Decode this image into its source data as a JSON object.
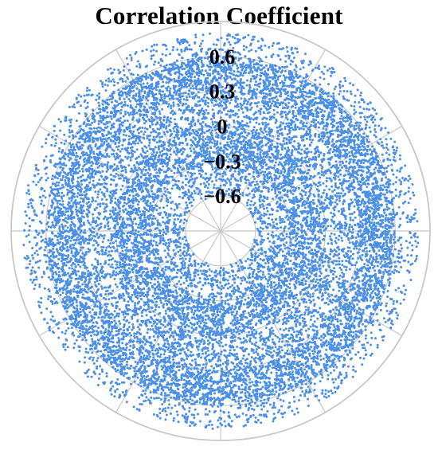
{
  "chart_data": {
    "type": "scatter",
    "projection": "polar",
    "title": "Correlation Coefficient",
    "radial_axis": {
      "range": [
        -0.9,
        0.9
      ],
      "ticks": [
        0.6,
        0.3,
        0,
        -0.3,
        -0.6
      ],
      "tick_labels": [
        "0.6",
        "0.3",
        "0",
        "−0.3",
        "−0.6"
      ],
      "tick_label_angle_deg": 90
    },
    "angular_axis": {
      "range_deg": [
        0,
        360
      ],
      "gridline_step_deg": 30
    },
    "grid": true,
    "legend": "none",
    "series": [
      {
        "color": "#4a8fe8",
        "approx_point_count": 15000,
        "radial_distribution": [
          {
            "band": [
              -0.6,
              -0.3
            ],
            "density": "medium"
          },
          {
            "band": [
              -0.3,
              0.0
            ],
            "density": "high"
          },
          {
            "band": [
              0.0,
              0.3
            ],
            "density": "medium"
          },
          {
            "band": [
              0.3,
              0.6
            ],
            "density": "high"
          },
          {
            "band": [
              0.6,
              0.8
            ],
            "density": "low"
          }
        ]
      }
    ]
  },
  "colors": {
    "points": "#4a8fe8",
    "grid": "#c8c8c8",
    "text": "#000000",
    "background": "#ffffff"
  }
}
